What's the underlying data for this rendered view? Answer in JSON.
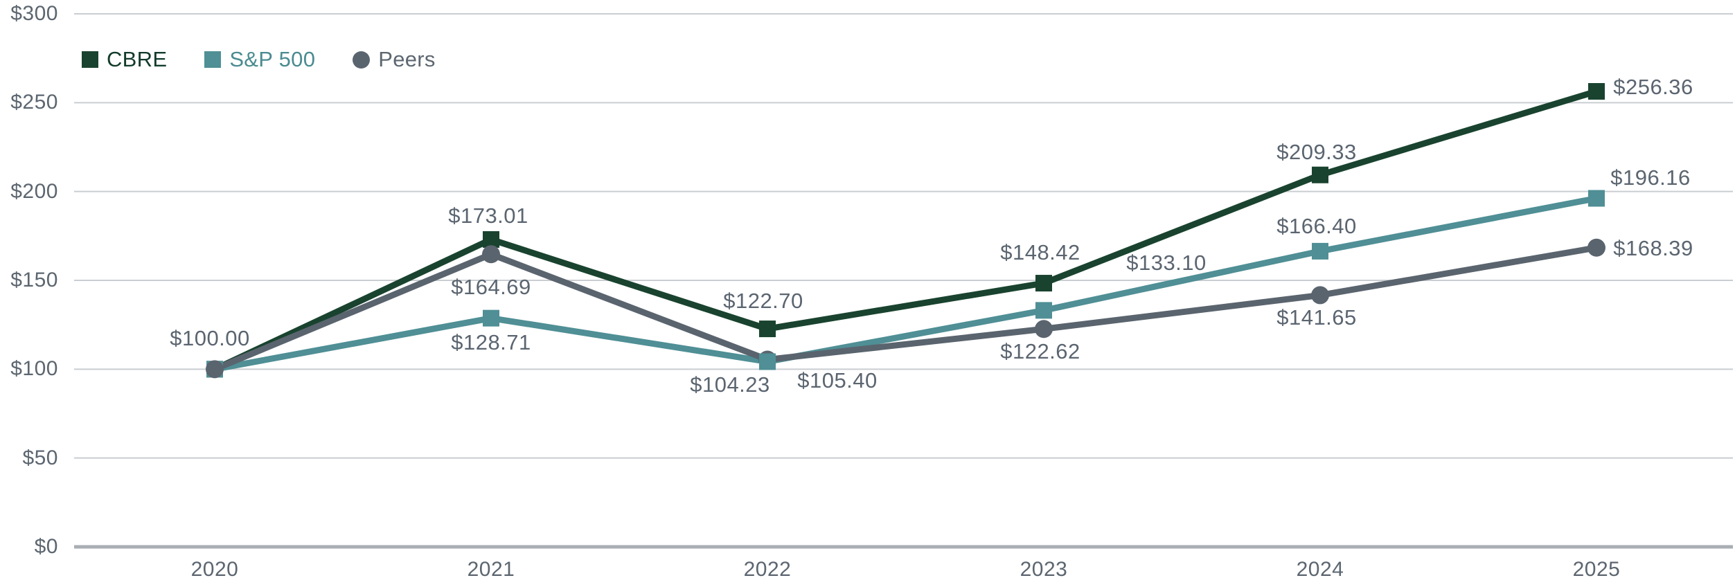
{
  "chart_data": {
    "type": "line",
    "title": "",
    "xlabel": "",
    "ylabel": "",
    "x_labels": [
      "2020",
      "2021",
      "2022",
      "2023",
      "2024",
      "2025"
    ],
    "y_tick_labels": [
      "$300",
      "$250",
      "$200",
      "$150",
      "$100",
      "$50",
      "$0"
    ],
    "ylim": [
      0,
      300
    ],
    "y_tick_step": 50,
    "grid": true,
    "legend_position": "top-left",
    "value_label_prefix": "$",
    "series": [
      {
        "name": "CBRE",
        "color": "#19432F",
        "label_color": "#123B2B",
        "marker": "square",
        "values": [
          100.0,
          173.01,
          122.7,
          148.42,
          209.33,
          256.36
        ],
        "label_offsets": [
          [
            -7,
            -44
          ],
          [
            -4,
            -34
          ],
          [
            -6,
            -40
          ],
          [
            -5,
            -44
          ],
          [
            -5,
            -33
          ],
          [
            82,
            -6
          ]
        ]
      },
      {
        "name": "S&P 500",
        "color": "#4F8F95",
        "label_color": "#4A8B91",
        "marker": "square",
        "values": [
          100.0,
          128.71,
          104.23,
          133.1,
          166.4,
          196.16
        ],
        "label_offsets": [
          null,
          [
            0,
            35
          ],
          [
            -54,
            34
          ],
          [
            177,
            -68
          ],
          [
            -5,
            -36
          ],
          [
            78,
            -30
          ]
        ]
      },
      {
        "name": "Peers",
        "color": "#5A646E",
        "label_color": "#5D6770",
        "marker": "circle",
        "values": [
          100.0,
          164.69,
          105.4,
          122.62,
          141.65,
          168.39
        ],
        "label_offsets": [
          null,
          [
            0,
            48
          ],
          [
            101,
            31
          ],
          [
            -5,
            33
          ],
          [
            -5,
            33
          ],
          [
            82,
            1
          ]
        ]
      }
    ],
    "colors": {
      "grid": "#C9CDD1",
      "axis": "#A9AEB4",
      "tick_text": "#5C6670",
      "value_text": "#5B6570",
      "background": "#FFFFFF"
    }
  }
}
